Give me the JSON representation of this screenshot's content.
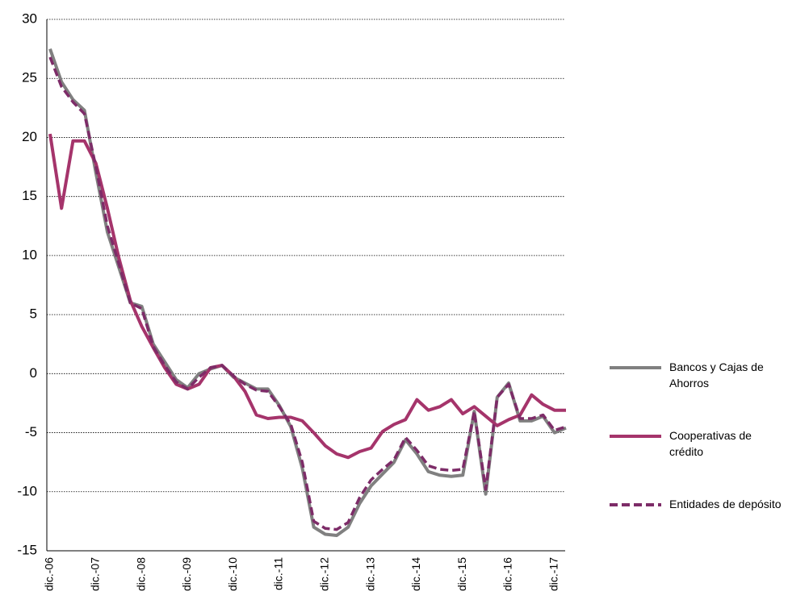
{
  "chart_data": {
    "type": "line",
    "categories": [
      "dic.-06",
      null,
      null,
      null,
      "dic.-07",
      null,
      null,
      null,
      "dic.-08",
      null,
      null,
      null,
      "dic.-09",
      null,
      null,
      null,
      "dic.-10",
      null,
      null,
      null,
      "dic.-11",
      null,
      null,
      null,
      "dic.-12",
      null,
      null,
      null,
      "dic.-13",
      null,
      null,
      null,
      "dic.-14",
      null,
      null,
      null,
      "dic.-15",
      null,
      null,
      null,
      "dic.-16",
      null,
      null,
      null,
      "dic.-17",
      null
    ],
    "series": [
      {
        "name": "Bancos y Cajas de Ahorros",
        "color": "#808080",
        "dash": false,
        "values": [
          27.5,
          24.7,
          23.2,
          22.3,
          17,
          12,
          9,
          6,
          5.7,
          2.5,
          1,
          -0.5,
          -1.2,
          0,
          0.4,
          0.7,
          -0.3,
          -0.8,
          -1.3,
          -1.3,
          -2.7,
          -4.5,
          -8,
          -13,
          -13.6,
          -13.7,
          -13,
          -11,
          -9.5,
          -8.5,
          -7.5,
          -5.6,
          -6.8,
          -8.3,
          -8.6,
          -8.7,
          -8.6,
          -3.2,
          -10.2,
          -2,
          -0.8,
          -4,
          -4,
          -3.6,
          -5,
          -4.6
        ]
      },
      {
        "name": "Cooperativas de crédito",
        "color": "#A5346B",
        "dash": false,
        "values": [
          20.3,
          14,
          19.7,
          19.7,
          17.8,
          14,
          9.8,
          6.2,
          4,
          2.2,
          0.5,
          -0.9,
          -1.3,
          -0.9,
          0.5,
          0.7,
          -0.2,
          -1.5,
          -3.5,
          -3.8,
          -3.7,
          -3.7,
          -4,
          -5,
          -6.1,
          -6.8,
          -7.1,
          -6.6,
          -6.3,
          -4.9,
          -4.3,
          -3.9,
          -2.2,
          -3.1,
          -2.8,
          -2.2,
          -3.4,
          -2.8,
          -3.6,
          -4.4,
          -3.9,
          -3.5,
          -1.8,
          -2.6,
          -3.1,
          -3.1
        ]
      },
      {
        "name": "Entidades de depósito",
        "color": "#7D2C68",
        "dash": true,
        "values": [
          26.8,
          24.3,
          23,
          22,
          17.5,
          12.5,
          9.3,
          6,
          5.5,
          2.3,
          0.7,
          -0.7,
          -1.3,
          -0.3,
          0.5,
          0.7,
          -0.2,
          -0.9,
          -1.4,
          -1.5,
          -2.8,
          -4.3,
          -7.5,
          -12.5,
          -13.1,
          -13.2,
          -12.6,
          -10.5,
          -9,
          -8.1,
          -7.3,
          -5.4,
          -6.5,
          -7.8,
          -8.1,
          -8.2,
          -8.1,
          -3.2,
          -9.8,
          -2,
          -0.9,
          -3.8,
          -3.8,
          -3.5,
          -4.8,
          -4.5
        ]
      }
    ],
    "ylim": [
      -15,
      30
    ],
    "yticks": [
      -15,
      -10,
      -5,
      0,
      5,
      10,
      15,
      20,
      25,
      30
    ],
    "grid": true,
    "legend": "right"
  }
}
